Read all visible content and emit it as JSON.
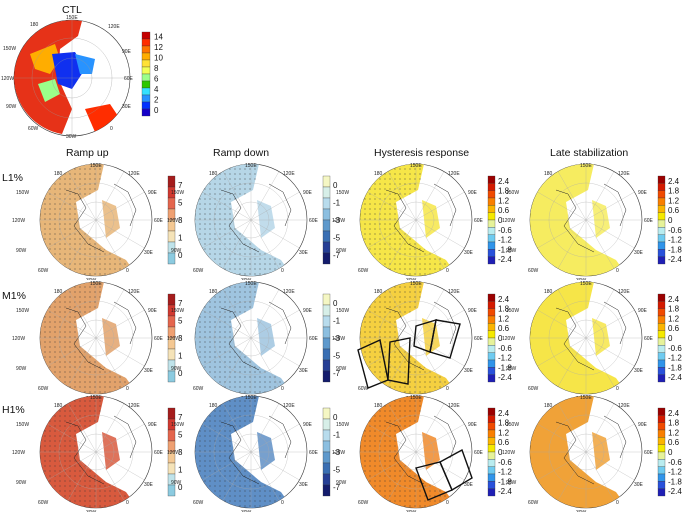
{
  "figure": {
    "ctl": {
      "title": "CTL",
      "colorbar": [
        "14",
        "12",
        "10",
        "8",
        "6",
        "4",
        "2",
        "0"
      ],
      "colors": [
        "#c40000",
        "#ff2d00",
        "#ff7400",
        "#ffad00",
        "#ffe135",
        "#f1ff55",
        "#9bff8a",
        "#2ec700",
        "#35e1ff",
        "#2893ff",
        "#0030ff",
        "#1500c8"
      ]
    },
    "columns": [
      {
        "title": "Ramp up"
      },
      {
        "title": "Ramp down"
      },
      {
        "title": "Hysteresis response"
      },
      {
        "title": "Late stabilization"
      }
    ],
    "rows": [
      {
        "label": "L1%"
      },
      {
        "label": "M1%"
      },
      {
        "label": "H1%"
      }
    ],
    "colorbars": {
      "ramp_up": {
        "ticks": [
          "7",
          "5",
          "3",
          "1",
          "0"
        ],
        "colors": [
          "#a51c1c",
          "#d1382f",
          "#e4654d",
          "#efa072",
          "#f4c893",
          "#f5e3b8",
          "#bfe3ea",
          "#8ccbe0"
        ]
      },
      "ramp_down": {
        "ticks": [
          "0",
          "-1",
          "-3",
          "-5",
          "-7"
        ],
        "colors": [
          "#f5f7c4",
          "#d7efe8",
          "#b8dced",
          "#8cbfe0",
          "#5e99cc",
          "#3a6fb3",
          "#263f95",
          "#141c6c"
        ]
      },
      "diverging": {
        "ticks": [
          "2.4",
          "1.8",
          "1.2",
          "0.6",
          "0",
          "-0.6",
          "-1.2",
          "-1.8",
          "-2.4"
        ],
        "colors": [
          "#9b0000",
          "#d41a00",
          "#f04a00",
          "#f97f00",
          "#fbb500",
          "#f5e900",
          "#e6f29a",
          "#b9ecef",
          "#6fcbf0",
          "#3094ea",
          "#2951db",
          "#1f1fb5"
        ]
      }
    },
    "map_labels": {
      "top": "150E",
      "top_left": "180",
      "left_upper": "150W",
      "left_mid": "120W",
      "left_lower": "90W",
      "bottom_left": "60W",
      "bottom": "30W",
      "right_upper": "120E",
      "right_mid": "90E",
      "right_lower": "60E",
      "right_bottom": "30E",
      "bottom_right": "0"
    },
    "panel_fills": {
      "ramp_up": [
        "#e7b679",
        "#e2a26b",
        "#d85a3e"
      ],
      "ramp_down": [
        "#b6d6e7",
        "#9fc4df",
        "#5f8fc6"
      ],
      "hysteresis": [
        "#f6e648",
        "#f5d040",
        "#f08a2a"
      ],
      "late": [
        "#f6ec60",
        "#f6e548",
        "#f0a238"
      ]
    },
    "ctl_fill": "#f5541d"
  }
}
